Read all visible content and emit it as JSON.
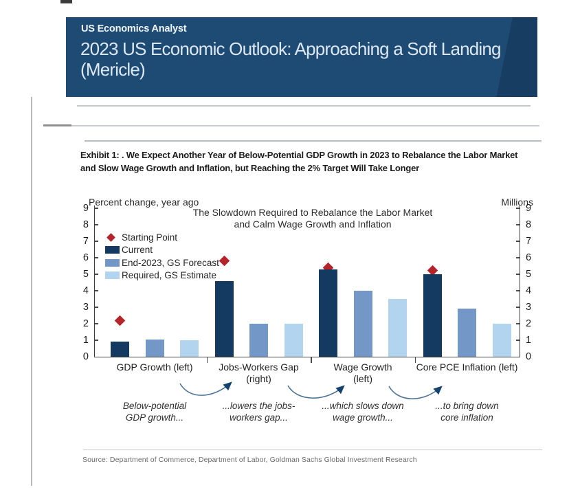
{
  "page": {
    "banner": {
      "kicker": "US Economics Analyst",
      "title": "2023 US Economic Outlook: Approaching a Soft Landing (Mericle)",
      "title_lines": [
        "2023 US Economic Outlook: Approaching a Soft Landing",
        "(Mericle)"
      ],
      "bg_color": "#1d4b74",
      "accent_dark": "#173d62"
    },
    "exhibit_title_lines": [
      "Exhibit 1: . We Expect Another Year of Below-Potential GDP Growth in 2023 to Rebalance the Labor Market",
      "and Slow Wage Growth and Inflation, but Reaching the 2% Target Will Take Longer"
    ],
    "source": "Source: Department of Commerce, Department of Labor, Goldman Sachs Global Investment Research"
  },
  "chart_data": {
    "type": "bar",
    "title": "The Slowdown Required to Rebalance the Labor Market and Calm Wage Growth and Inflation",
    "title_lines": [
      "The Slowdown Required to Rebalance the Labor Market",
      "and Calm Wage Growth and Inflation"
    ],
    "left_axis_label": "Percent change, year ago",
    "right_axis_label": "Millions",
    "ylim": [
      0,
      9
    ],
    "yticks": [
      0,
      1,
      2,
      3,
      4,
      5,
      6,
      7,
      8,
      9
    ],
    "grid": false,
    "legend_position": "upper-left",
    "categories": [
      {
        "lines": [
          "GDP Growth (left)"
        ]
      },
      {
        "lines": [
          "Jobs-Workers Gap",
          "(right)"
        ]
      },
      {
        "lines": [
          "Wage Growth",
          "(left)"
        ]
      },
      {
        "lines": [
          "Core PCE Inflation (left)"
        ]
      }
    ],
    "series": [
      {
        "name": "Starting Point",
        "marker": "diamond",
        "color": "#b5232b",
        "values": [
          2.2,
          5.8,
          5.4,
          5.25
        ]
      },
      {
        "name": "Current",
        "marker": "bar",
        "color": "#143a61",
        "values": [
          0.9,
          4.6,
          5.3,
          5.0
        ]
      },
      {
        "name": "End-2023, GS Forecast",
        "marker": "bar",
        "color": "#7398c7",
        "values": [
          1.05,
          2.0,
          4.0,
          2.9
        ]
      },
      {
        "name": "Required, GS Estimate",
        "marker": "bar",
        "color": "#b2d4ef",
        "values": [
          1.0,
          2.0,
          3.5,
          2.0
        ]
      }
    ],
    "annotations": [
      [
        "Below-potential",
        "GDP growth..."
      ],
      [
        "...lowers the jobs-",
        "workers gap..."
      ],
      [
        "...which slows down",
        "wage growth..."
      ],
      [
        "...to bring down",
        "core inflation"
      ]
    ]
  }
}
